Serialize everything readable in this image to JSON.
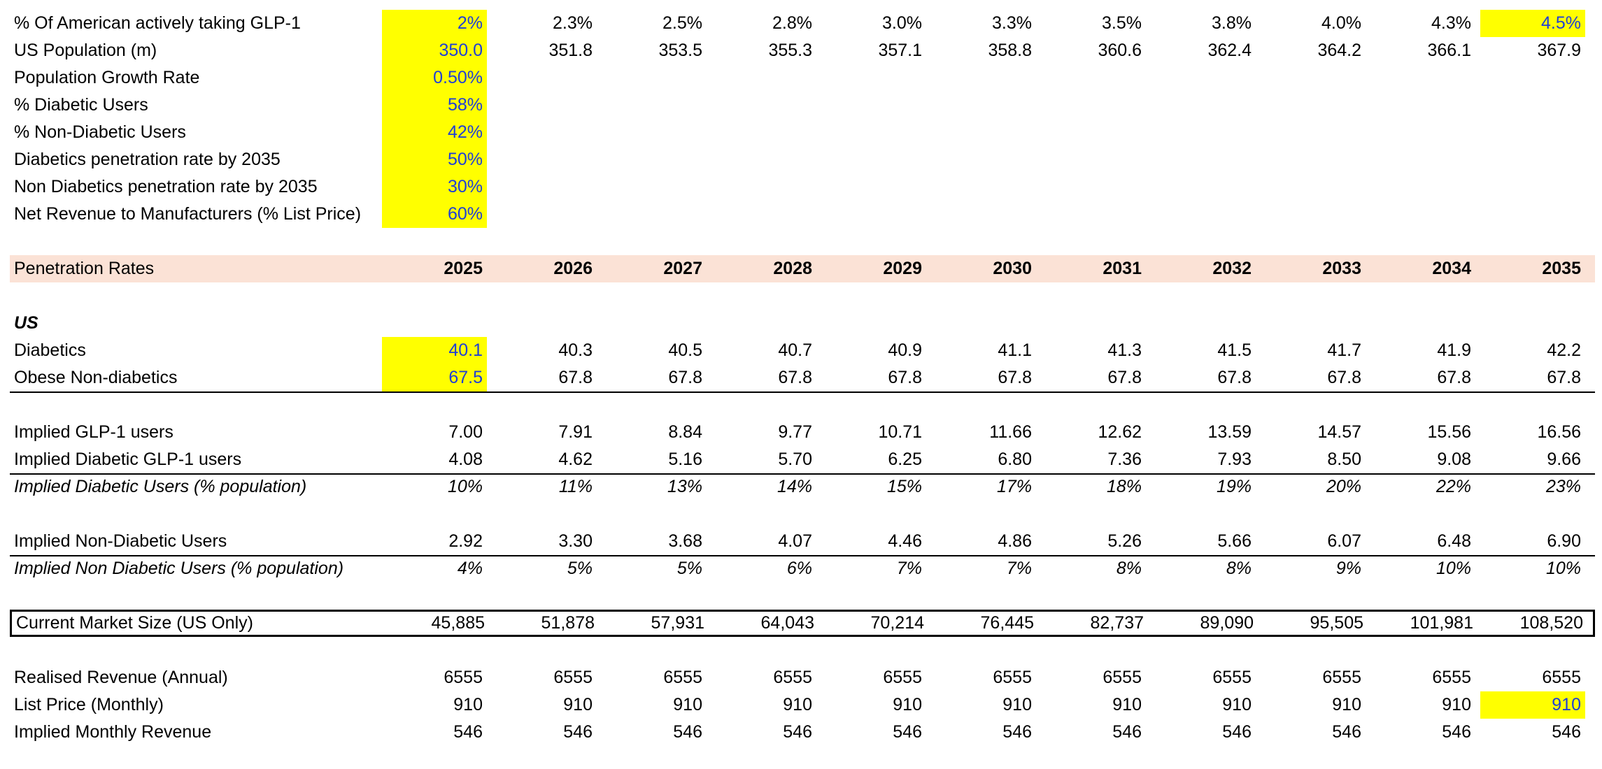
{
  "rows": [
    {
      "label": "% Of American actively  taking GLP-1",
      "values": [
        "2%",
        "2.3%",
        "2.5%",
        "2.8%",
        "3.0%",
        "3.3%",
        "3.5%",
        "3.8%",
        "4.0%",
        "4.3%",
        "4.5%"
      ],
      "blue": [
        0,
        10
      ],
      "highlight": [
        0,
        10
      ]
    },
    {
      "label": "US Population (m)",
      "values": [
        "350.0",
        "351.8",
        "353.5",
        "355.3",
        "357.1",
        "358.8",
        "360.6",
        "362.4",
        "364.2",
        "366.1",
        "367.9"
      ],
      "blue": [
        0
      ],
      "highlight": [
        0
      ]
    },
    {
      "label": "Population Growth Rate",
      "values": [
        "0.50%"
      ],
      "blue": [
        0
      ],
      "highlight": [
        0
      ]
    },
    {
      "label": "% Diabetic Users",
      "values": [
        "58%"
      ],
      "blue": [
        0
      ],
      "highlight": [
        0
      ]
    },
    {
      "label": "% Non-Diabetic Users",
      "values": [
        "42%"
      ],
      "blue": [
        0
      ],
      "highlight": [
        0
      ]
    },
    {
      "label": "Diabetics penetration rate by 2035",
      "values": [
        "50%"
      ],
      "blue": [
        0
      ],
      "highlight": [
        0
      ]
    },
    {
      "label": "Non Diabetics penetration rate by 2035",
      "values": [
        "30%"
      ],
      "blue": [
        0
      ],
      "highlight": [
        0
      ]
    },
    {
      "label": "Net Revenue to Manufacturers (% List Price)",
      "values": [
        "60%"
      ],
      "blue": [
        0
      ],
      "highlight": [
        0
      ]
    },
    {
      "label": "",
      "values": []
    },
    {
      "label": "Penetration Rates",
      "values": [
        "2025",
        "2026",
        "2027",
        "2028",
        "2029",
        "2030",
        "2031",
        "2032",
        "2033",
        "2034",
        "2035"
      ],
      "header": true
    },
    {
      "label": "",
      "values": []
    },
    {
      "label": "US",
      "values": [],
      "boldItalic": true
    },
    {
      "label": "Diabetics",
      "values": [
        "40.1",
        "40.3",
        "40.5",
        "40.7",
        "40.9",
        "41.1",
        "41.3",
        "41.5",
        "41.7",
        "41.9",
        "42.2"
      ],
      "blue": [
        0
      ],
      "highlight": [
        0
      ]
    },
    {
      "label": "Obese Non-diabetics",
      "values": [
        "67.5",
        "67.8",
        "67.8",
        "67.8",
        "67.8",
        "67.8",
        "67.8",
        "67.8",
        "67.8",
        "67.8",
        "67.8"
      ],
      "blue": [
        0
      ],
      "highlight": [
        0
      ],
      "underline": true
    },
    {
      "label": "",
      "values": []
    },
    {
      "label": "Implied GLP-1 users",
      "values": [
        "7.00",
        "7.91",
        "8.84",
        "9.77",
        "10.71",
        "11.66",
        "12.62",
        "13.59",
        "14.57",
        "15.56",
        "16.56"
      ]
    },
    {
      "label": "Implied Diabetic GLP-1 users",
      "values": [
        "4.08",
        "4.62",
        "5.16",
        "5.70",
        "6.25",
        "6.80",
        "7.36",
        "7.93",
        "8.50",
        "9.08",
        "9.66"
      ],
      "underline": true
    },
    {
      "label": "Implied Diabetic Users (% population)",
      "values": [
        "10%",
        "11%",
        "13%",
        "14%",
        "15%",
        "17%",
        "18%",
        "19%",
        "20%",
        "22%",
        "23%"
      ],
      "italic": true
    },
    {
      "label": "",
      "values": []
    },
    {
      "label": "Implied Non-Diabetic Users",
      "values": [
        "2.92",
        "3.30",
        "3.68",
        "4.07",
        "4.46",
        "4.86",
        "5.26",
        "5.66",
        "6.07",
        "6.48",
        "6.90"
      ],
      "underline": true
    },
    {
      "label": "Implied Non Diabetic Users (% population)",
      "values": [
        "4%",
        "5%",
        "5%",
        "6%",
        "7%",
        "7%",
        "8%",
        "8%",
        "9%",
        "10%",
        "10%"
      ],
      "italic": true
    },
    {
      "label": "",
      "values": []
    },
    {
      "label": "Current Market Size (US Only)",
      "values": [
        "45,885",
        "51,878",
        "57,931",
        "64,043",
        "70,214",
        "76,445",
        "82,737",
        "89,090",
        "95,505",
        "101,981",
        "108,520"
      ],
      "boxed": true
    },
    {
      "label": "",
      "values": []
    },
    {
      "label": "Realised Revenue (Annual)",
      "values": [
        "6555",
        "6555",
        "6555",
        "6555",
        "6555",
        "6555",
        "6555",
        "6555",
        "6555",
        "6555",
        "6555"
      ]
    },
    {
      "label": "List Price (Monthly)",
      "values": [
        "910",
        "910",
        "910",
        "910",
        "910",
        "910",
        "910",
        "910",
        "910",
        "910",
        "910"
      ],
      "blue": [
        10
      ],
      "highlight": [
        10
      ]
    },
    {
      "label": "Implied Monthly Revenue",
      "values": [
        "546",
        "546",
        "546",
        "546",
        "546",
        "546",
        "546",
        "546",
        "546",
        "546",
        "546"
      ]
    }
  ]
}
